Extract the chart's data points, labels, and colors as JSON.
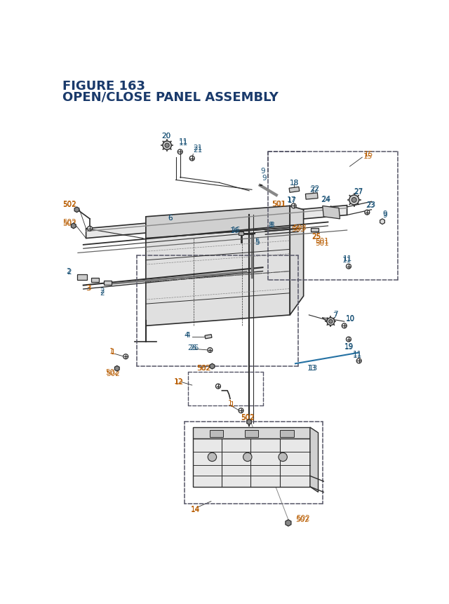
{
  "title_line1": "FIGURE 163",
  "title_line2": "OPEN/CLOSE PANEL ASSEMBLY",
  "title_color": "#1a3a6b",
  "bg_color": "#ffffff",
  "lc": "#2d2d2d",
  "bc": "#1a5276",
  "oc": "#b85c00",
  "pc": "#2d2d2d",
  "dc": "#555566"
}
